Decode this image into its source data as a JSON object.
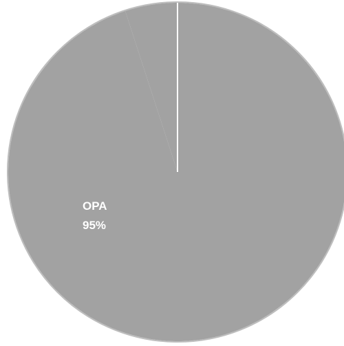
{
  "chart_data": {
    "type": "pie",
    "slices": [
      {
        "label": "OPA",
        "value": 95,
        "value_label": "95%",
        "color": "#a2a2a2"
      },
      {
        "label": "",
        "value": 5,
        "value_label": "",
        "color": "#a2a2a2"
      }
    ],
    "start_angle_deg": 0,
    "direction": "clockwise",
    "separator_color": "#ffffff",
    "outline_color": "#bdbdbd"
  }
}
